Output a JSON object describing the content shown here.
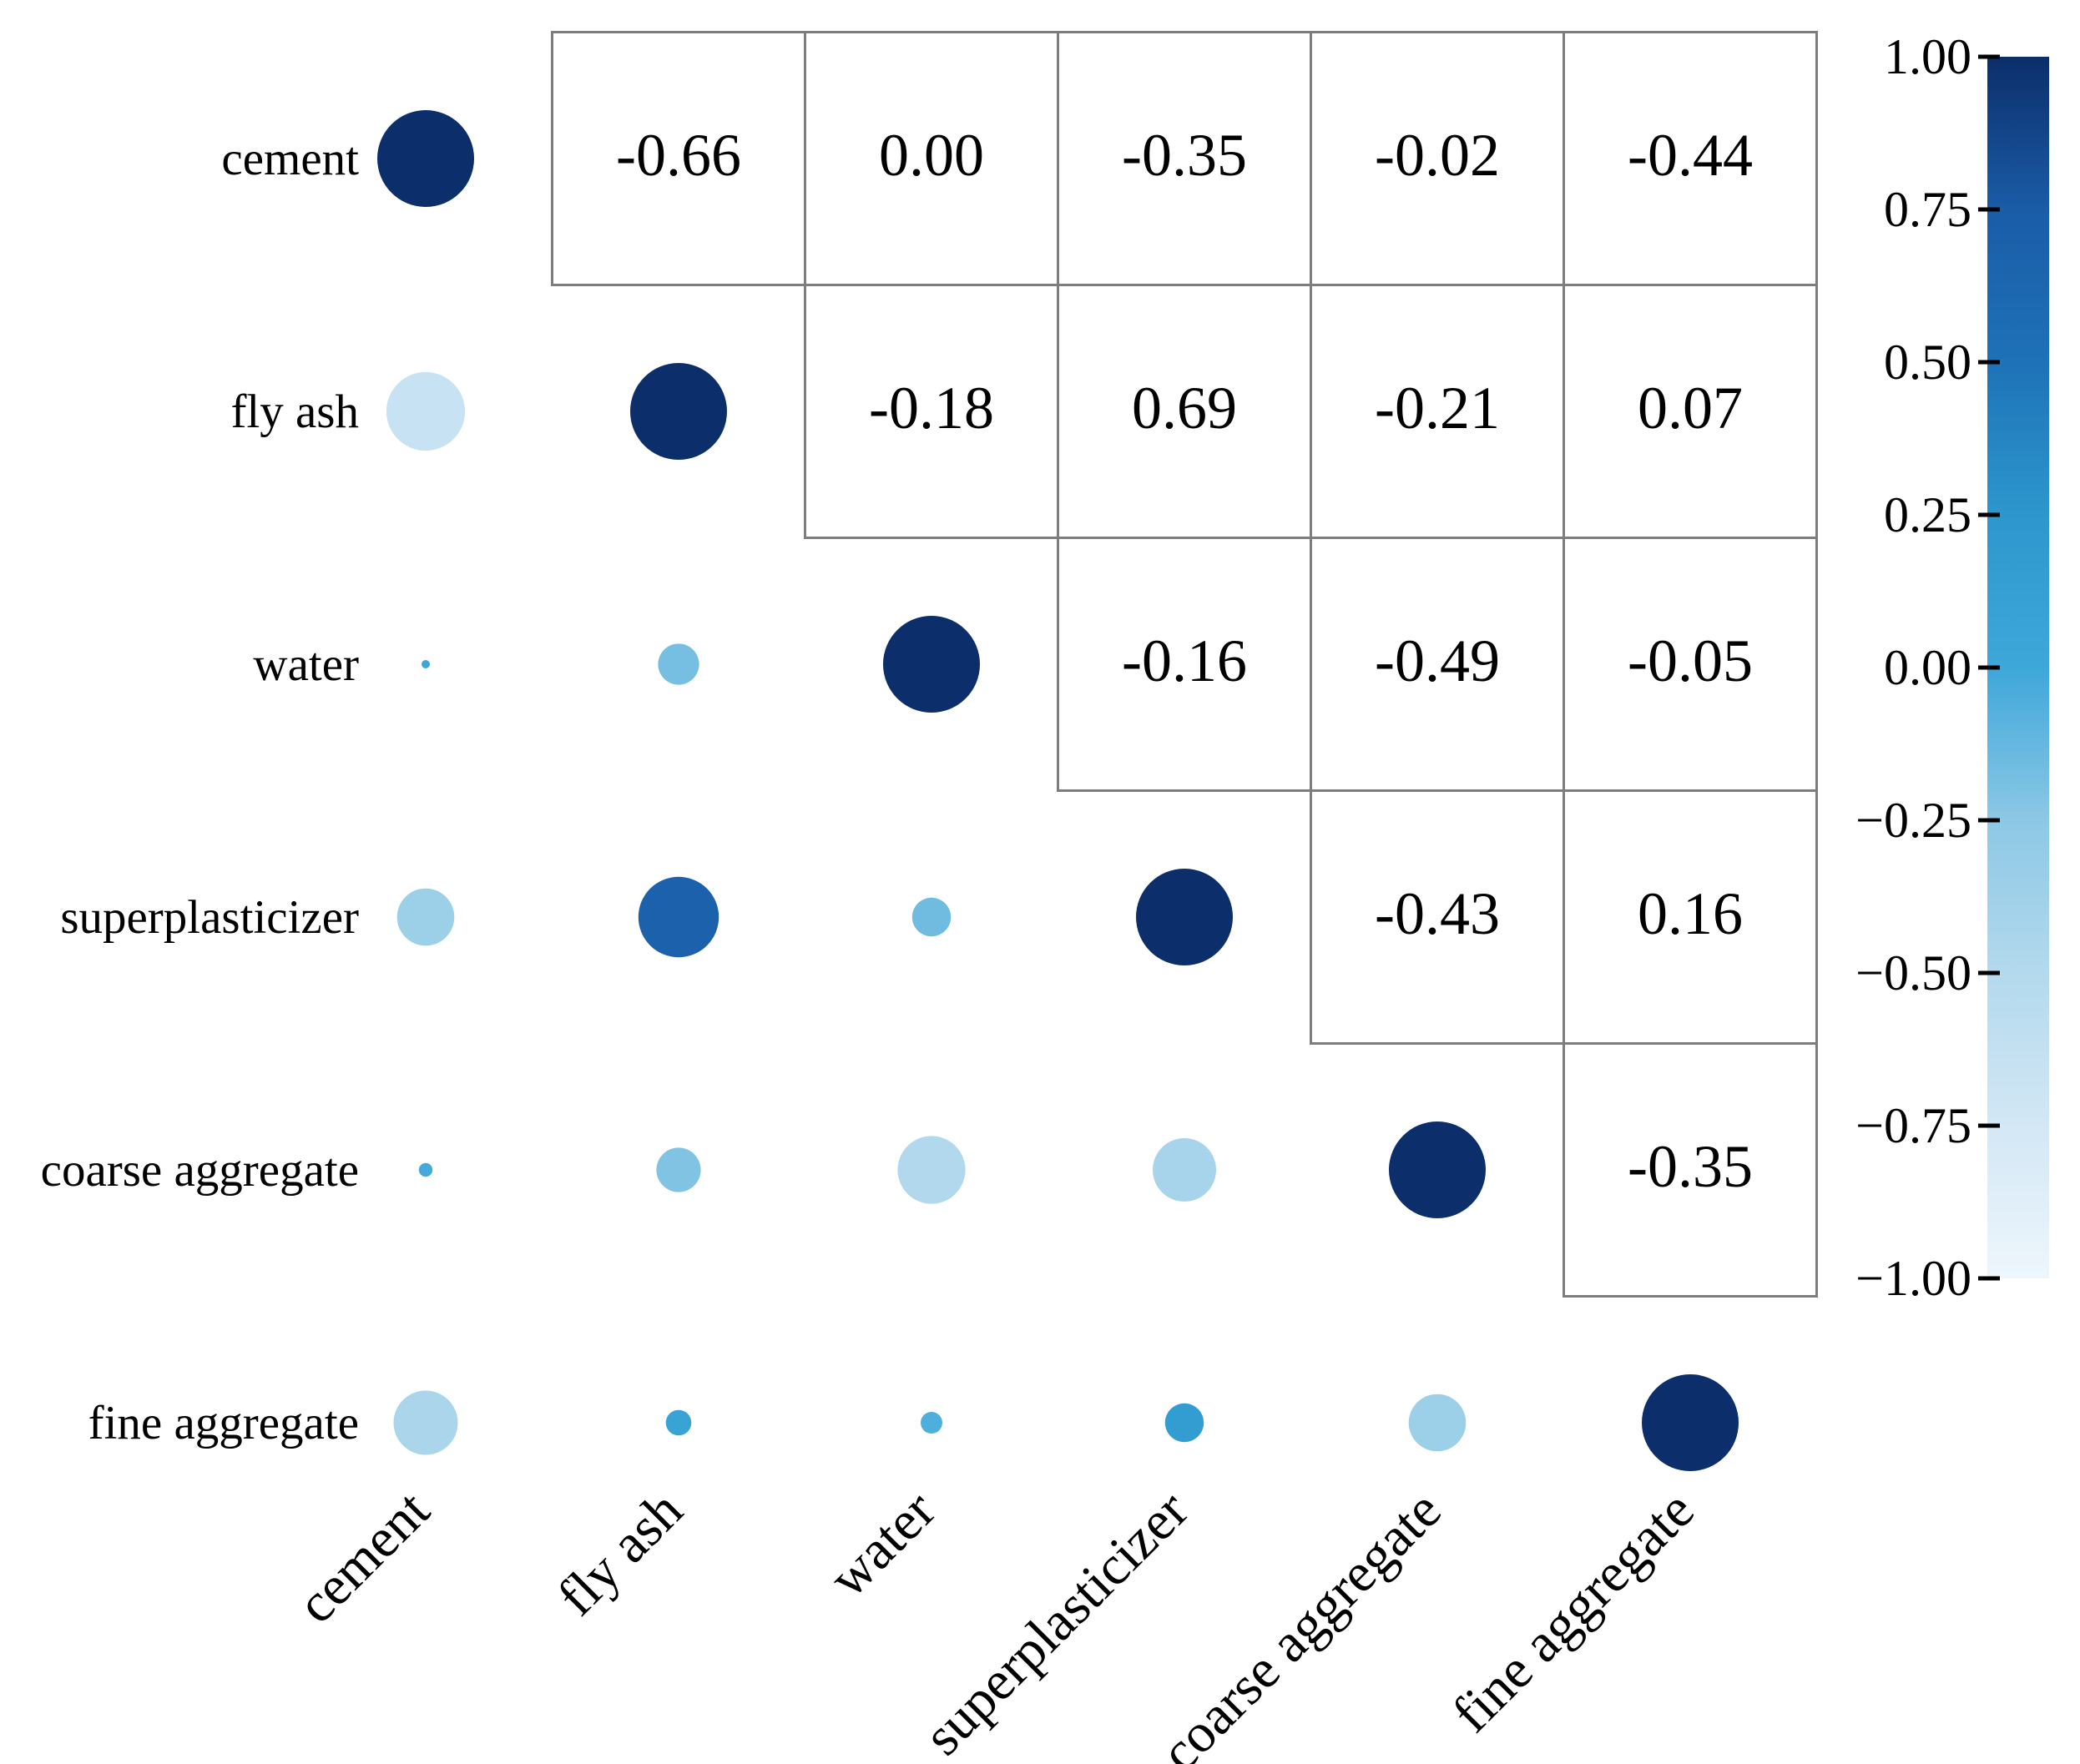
{
  "chart_data": {
    "type": "heatmap",
    "subtype": "correlation-bubble-matrix",
    "title": "",
    "variables": [
      "cement",
      "fly ash",
      "water",
      "superplasticizer",
      "coarse aggregate",
      "fine aggregate"
    ],
    "matrix": [
      [
        1.0,
        -0.66,
        0.0,
        -0.35,
        -0.02,
        -0.44
      ],
      [
        -0.66,
        1.0,
        -0.18,
        0.69,
        -0.21,
        0.07
      ],
      [
        0.0,
        -0.18,
        1.0,
        -0.16,
        -0.49,
        -0.05
      ],
      [
        -0.35,
        0.69,
        -0.16,
        1.0,
        -0.43,
        0.16
      ],
      [
        -0.02,
        -0.21,
        -0.49,
        -0.43,
        1.0,
        -0.35
      ],
      [
        -0.44,
        0.07,
        -0.05,
        0.16,
        -0.35,
        1.0
      ]
    ],
    "upper_triangle_value_labels": [
      [
        "-0.66",
        "0.00",
        "-0.35",
        "-0.02",
        "-0.44"
      ],
      [
        "-0.18",
        "0.69",
        "-0.21",
        "0.07"
      ],
      [
        "-0.16",
        "-0.49",
        "-0.05"
      ],
      [
        "-0.43",
        "0.16"
      ],
      [
        "-0.35"
      ]
    ],
    "encoding": {
      "lower_triangle": "circle, area proportional to |correlation|, color mapped to correlation",
      "upper_triangle": "numeric correlation value in gray-bordered cell",
      "diagonal": "full-size dark circle (correlation 1.00)"
    },
    "colorbar": {
      "range": [
        -1,
        1
      ],
      "tick_values": [
        1.0,
        0.75,
        0.5,
        0.25,
        0.0,
        -0.25,
        -0.5,
        -0.75,
        -1.0
      ],
      "tick_labels": [
        "1.00",
        "0.75",
        "0.50",
        "0.25",
        "0.00",
        "−0.25",
        "−0.50",
        "−0.75",
        "−1.00"
      ]
    },
    "colormap_stops": [
      {
        "value": 1.0,
        "color": "#0c2e6a"
      },
      {
        "value": 0.75,
        "color": "#1a5ca7"
      },
      {
        "value": 0.5,
        "color": "#1e72b7"
      },
      {
        "value": 0.25,
        "color": "#2d97cd"
      },
      {
        "value": 0.0,
        "color": "#3ea7da"
      },
      {
        "value": -0.25,
        "color": "#8cc8e5"
      },
      {
        "value": -0.5,
        "color": "#b3d9ed"
      },
      {
        "value": -0.75,
        "color": "#d3e7f5"
      },
      {
        "value": -1.0,
        "color": "#eef6fc"
      }
    ],
    "grid_color": "#7d7d7d",
    "text_color": "#000000",
    "legend_position": "right",
    "grid": "upper-triangle cells only"
  }
}
